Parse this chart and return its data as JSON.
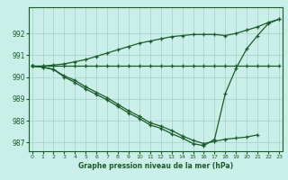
{
  "xlabel": "Graphe pression niveau de la mer (hPa)",
  "background_color": "#caeee8",
  "grid_color": "#a8ccc8",
  "line_color": "#1a5c2a",
  "x_values": [
    0,
    1,
    2,
    3,
    4,
    5,
    6,
    7,
    8,
    9,
    10,
    11,
    12,
    13,
    14,
    15,
    16,
    17,
    18,
    19,
    20,
    21,
    22,
    23
  ],
  "line_straight": [
    990.5,
    990.5,
    990.5,
    990.5,
    990.5,
    990.5,
    990.5,
    990.5,
    990.5,
    990.5,
    990.5,
    990.5,
    990.5,
    990.5,
    990.5,
    990.5,
    990.5,
    990.5,
    990.5,
    990.5,
    990.5,
    990.5,
    990.5,
    990.5
  ],
  "line_top": [
    990.5,
    990.5,
    990.55,
    990.6,
    990.7,
    990.8,
    990.95,
    991.1,
    991.25,
    991.4,
    991.55,
    991.65,
    991.75,
    991.85,
    991.9,
    991.95,
    991.95,
    991.95,
    991.9,
    992.0,
    992.15,
    992.3,
    992.5,
    992.65
  ],
  "line_curve": [
    990.5,
    990.45,
    990.35,
    990.05,
    989.85,
    989.55,
    989.3,
    989.05,
    988.75,
    988.45,
    988.2,
    987.9,
    987.75,
    987.55,
    987.3,
    987.1,
    986.95,
    987.05,
    987.15,
    987.2,
    987.25,
    987.35,
    null,
    null
  ],
  "line_curve2": [
    990.5,
    990.45,
    990.35,
    990.0,
    989.75,
    989.45,
    989.2,
    988.95,
    988.65,
    988.35,
    988.1,
    987.8,
    987.65,
    987.4,
    987.2,
    986.95,
    986.85,
    987.15,
    989.25,
    990.4,
    991.3,
    991.9,
    992.45,
    992.65
  ],
  "ylim": [
    986.6,
    993.2
  ],
  "xlim": [
    -0.3,
    23.3
  ],
  "yticks": [
    987,
    988,
    989,
    990,
    991,
    992
  ],
  "xticks": [
    0,
    1,
    2,
    3,
    4,
    5,
    6,
    7,
    8,
    9,
    10,
    11,
    12,
    13,
    14,
    15,
    16,
    17,
    18,
    19,
    20,
    21,
    22,
    23
  ]
}
